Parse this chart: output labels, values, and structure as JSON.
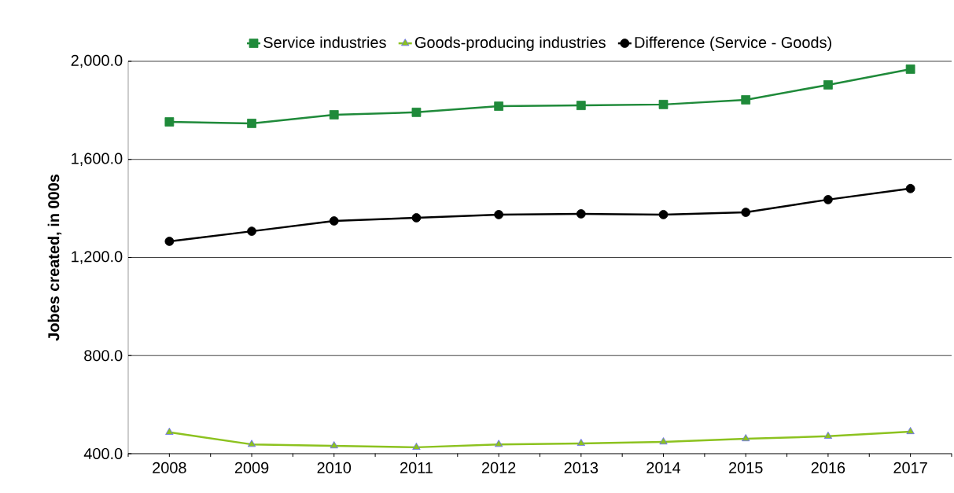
{
  "chart_data": {
    "type": "line",
    "ylabel": "Jobes created, in 000s",
    "categories": [
      "2008",
      "2009",
      "2010",
      "2011",
      "2012",
      "2013",
      "2014",
      "2015",
      "2016",
      "2017"
    ],
    "series": [
      {
        "name": "Service industries",
        "color": "#1f8a3a",
        "marker": "square",
        "values": [
          1753,
          1747,
          1782,
          1792,
          1817,
          1820,
          1824,
          1843,
          1904,
          1968
        ]
      },
      {
        "name": "Goods-producing industries",
        "color": "#8cc21f",
        "marker": "triangle",
        "values": [
          487,
          438,
          432,
          426,
          438,
          442,
          448,
          461,
          471,
          490
        ]
      },
      {
        "name": "Difference (Service - Goods)",
        "color": "#000000",
        "marker": "circle",
        "values": [
          1266,
          1307,
          1349,
          1362,
          1375,
          1378,
          1375,
          1384,
          1436,
          1481
        ]
      }
    ],
    "ylim": [
      400,
      2000
    ],
    "yticks": [
      {
        "value": 400,
        "label": "400.0"
      },
      {
        "value": 800,
        "label": "800.0"
      },
      {
        "value": 1200,
        "label": "1,200.0"
      },
      {
        "value": 1600,
        "label": "1,600.0"
      },
      {
        "value": 2000,
        "label": "2,000.0"
      }
    ],
    "grid": "y",
    "legend": "top",
    "line_style": "solid"
  }
}
